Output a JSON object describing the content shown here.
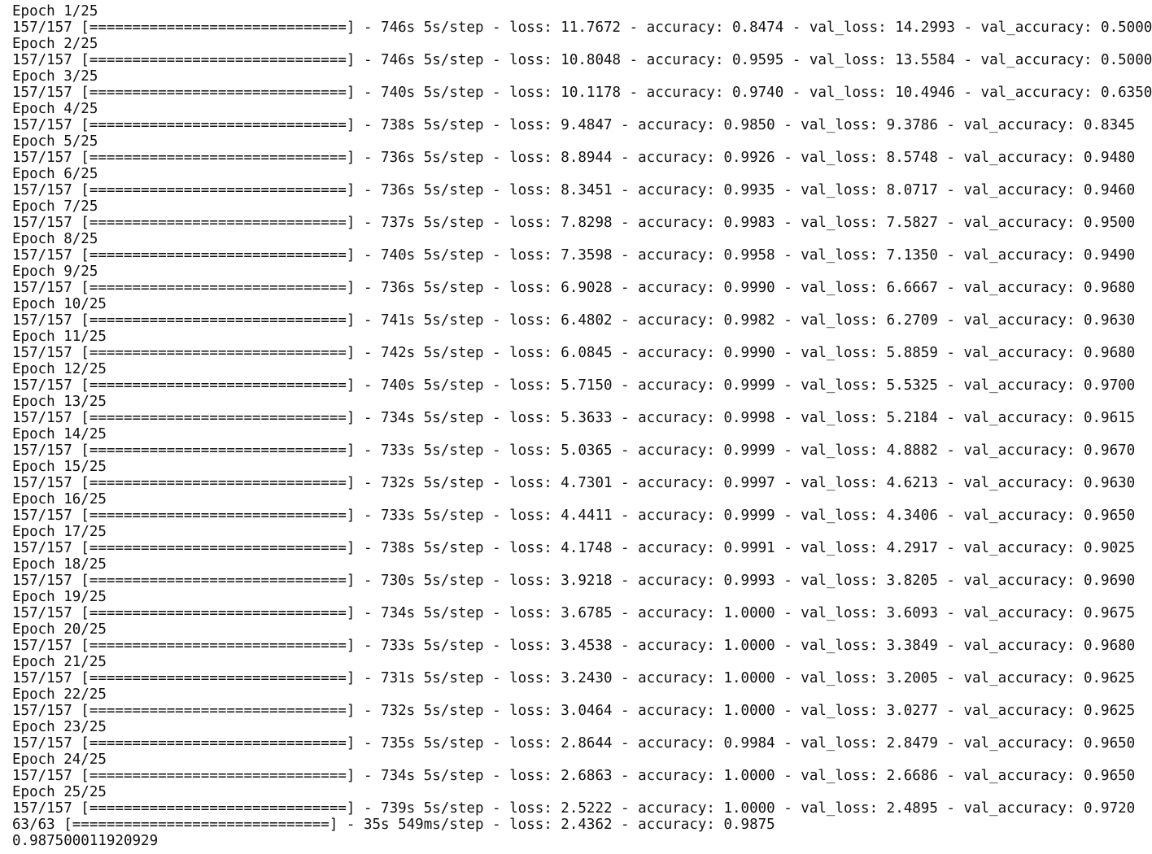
{
  "console": {
    "lines": [
      "Epoch 1/25",
      "157/157 [==============================] - 746s 5s/step - loss: 11.7672 - accuracy: 0.8474 - val_loss: 14.2993 - val_accuracy: 0.5000",
      "Epoch 2/25",
      "157/157 [==============================] - 746s 5s/step - loss: 10.8048 - accuracy: 0.9595 - val_loss: 13.5584 - val_accuracy: 0.5000",
      "Epoch 3/25",
      "157/157 [==============================] - 740s 5s/step - loss: 10.1178 - accuracy: 0.9740 - val_loss: 10.4946 - val_accuracy: 0.6350",
      "Epoch 4/25",
      "157/157 [==============================] - 738s 5s/step - loss: 9.4847 - accuracy: 0.9850 - val_loss: 9.3786 - val_accuracy: 0.8345",
      "Epoch 5/25",
      "157/157 [==============================] - 736s 5s/step - loss: 8.8944 - accuracy: 0.9926 - val_loss: 8.5748 - val_accuracy: 0.9480",
      "Epoch 6/25",
      "157/157 [==============================] - 736s 5s/step - loss: 8.3451 - accuracy: 0.9935 - val_loss: 8.0717 - val_accuracy: 0.9460",
      "Epoch 7/25",
      "157/157 [==============================] - 737s 5s/step - loss: 7.8298 - accuracy: 0.9983 - val_loss: 7.5827 - val_accuracy: 0.9500",
      "Epoch 8/25",
      "157/157 [==============================] - 740s 5s/step - loss: 7.3598 - accuracy: 0.9958 - val_loss: 7.1350 - val_accuracy: 0.9490",
      "Epoch 9/25",
      "157/157 [==============================] - 736s 5s/step - loss: 6.9028 - accuracy: 0.9990 - val_loss: 6.6667 - val_accuracy: 0.9680",
      "Epoch 10/25",
      "157/157 [==============================] - 741s 5s/step - loss: 6.4802 - accuracy: 0.9982 - val_loss: 6.2709 - val_accuracy: 0.9630",
      "Epoch 11/25",
      "157/157 [==============================] - 742s 5s/step - loss: 6.0845 - accuracy: 0.9990 - val_loss: 5.8859 - val_accuracy: 0.9680",
      "Epoch 12/25",
      "157/157 [==============================] - 740s 5s/step - loss: 5.7150 - accuracy: 0.9999 - val_loss: 5.5325 - val_accuracy: 0.9700",
      "Epoch 13/25",
      "157/157 [==============================] - 734s 5s/step - loss: 5.3633 - accuracy: 0.9998 - val_loss: 5.2184 - val_accuracy: 0.9615",
      "Epoch 14/25",
      "157/157 [==============================] - 733s 5s/step - loss: 5.0365 - accuracy: 0.9999 - val_loss: 4.8882 - val_accuracy: 0.9670",
      "Epoch 15/25",
      "157/157 [==============================] - 732s 5s/step - loss: 4.7301 - accuracy: 0.9997 - val_loss: 4.6213 - val_accuracy: 0.9630",
      "Epoch 16/25",
      "157/157 [==============================] - 733s 5s/step - loss: 4.4411 - accuracy: 0.9999 - val_loss: 4.3406 - val_accuracy: 0.9650",
      "Epoch 17/25",
      "157/157 [==============================] - 738s 5s/step - loss: 4.1748 - accuracy: 0.9991 - val_loss: 4.2917 - val_accuracy: 0.9025",
      "Epoch 18/25",
      "157/157 [==============================] - 730s 5s/step - loss: 3.9218 - accuracy: 0.9993 - val_loss: 3.8205 - val_accuracy: 0.9690",
      "Epoch 19/25",
      "157/157 [==============================] - 734s 5s/step - loss: 3.6785 - accuracy: 1.0000 - val_loss: 3.6093 - val_accuracy: 0.9675",
      "Epoch 20/25",
      "157/157 [==============================] - 733s 5s/step - loss: 3.4538 - accuracy: 1.0000 - val_loss: 3.3849 - val_accuracy: 0.9680",
      "Epoch 21/25",
      "157/157 [==============================] - 731s 5s/step - loss: 3.2430 - accuracy: 1.0000 - val_loss: 3.2005 - val_accuracy: 0.9625",
      "Epoch 22/25",
      "157/157 [==============================] - 732s 5s/step - loss: 3.0464 - accuracy: 1.0000 - val_loss: 3.0277 - val_accuracy: 0.9625",
      "Epoch 23/25",
      "157/157 [==============================] - 735s 5s/step - loss: 2.8644 - accuracy: 0.9984 - val_loss: 2.8479 - val_accuracy: 0.9650",
      "Epoch 24/25",
      "157/157 [==============================] - 734s 5s/step - loss: 2.6863 - accuracy: 1.0000 - val_loss: 2.6686 - val_accuracy: 0.9650",
      "Epoch 25/25",
      "157/157 [==============================] - 739s 5s/step - loss: 2.5222 - accuracy: 1.0000 - val_loss: 2.4895 - val_accuracy: 0.9720",
      "63/63 [==============================] - 35s 549ms/step - loss: 2.4362 - accuracy: 0.9875",
      "0.987500011920929"
    ]
  }
}
